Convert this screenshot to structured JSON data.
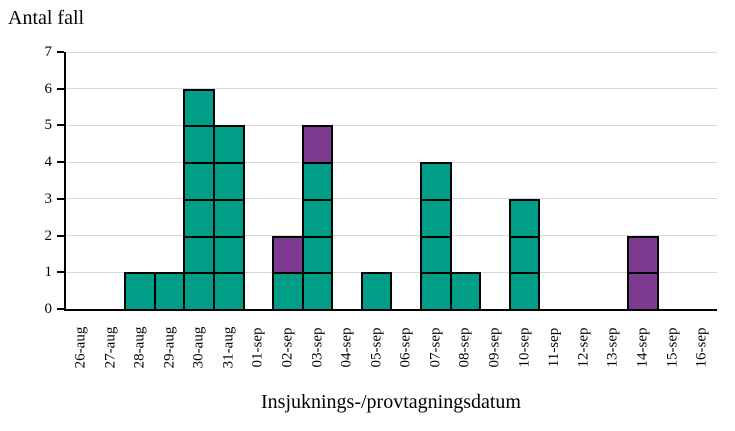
{
  "titles": {
    "y_axis_title": "Antal fall",
    "x_axis_title": "Insjuknings-/provtagningsdatum"
  },
  "colors": {
    "case_green": "#009E86",
    "case_purple": "#7E3A90",
    "gridline": "#D9D9D9",
    "axis": "#000000",
    "cell_border": "#000000",
    "background": "#FFFFFF"
  },
  "chart_data": {
    "type": "bar",
    "subtype": "epidemic-curve-stacked-unit-cells",
    "title": "Antal fall",
    "xlabel": "Insjuknings-/provtagningsdatum",
    "ylabel": "Antal fall",
    "ylim": [
      0,
      7
    ],
    "yticks": [
      0,
      1,
      2,
      3,
      4,
      5,
      6,
      7
    ],
    "grid": "horizontal",
    "legend": "none",
    "bar_gap": 0,
    "categories": [
      "26-aug",
      "27-aug",
      "28-aug",
      "29-aug",
      "30-aug",
      "31-aug",
      "01-sep",
      "02-sep",
      "03-sep",
      "04-sep",
      "05-sep",
      "06-sep",
      "07-sep",
      "08-sep",
      "09-sep",
      "10-sep",
      "11-sep",
      "12-sep",
      "13-sep",
      "14-sep",
      "15-sep",
      "16-sep"
    ],
    "series": [
      {
        "name": "green-cases",
        "color": "#009E86",
        "values": [
          0,
          0,
          1,
          1,
          6,
          5,
          0,
          1,
          4,
          0,
          1,
          0,
          4,
          1,
          0,
          3,
          0,
          0,
          0,
          0,
          0,
          0
        ]
      },
      {
        "name": "purple-cases",
        "color": "#7E3A90",
        "values": [
          0,
          0,
          0,
          0,
          0,
          0,
          0,
          1,
          1,
          0,
          0,
          0,
          0,
          0,
          0,
          0,
          0,
          0,
          0,
          2,
          0,
          0
        ]
      }
    ],
    "total_cases": 31
  }
}
